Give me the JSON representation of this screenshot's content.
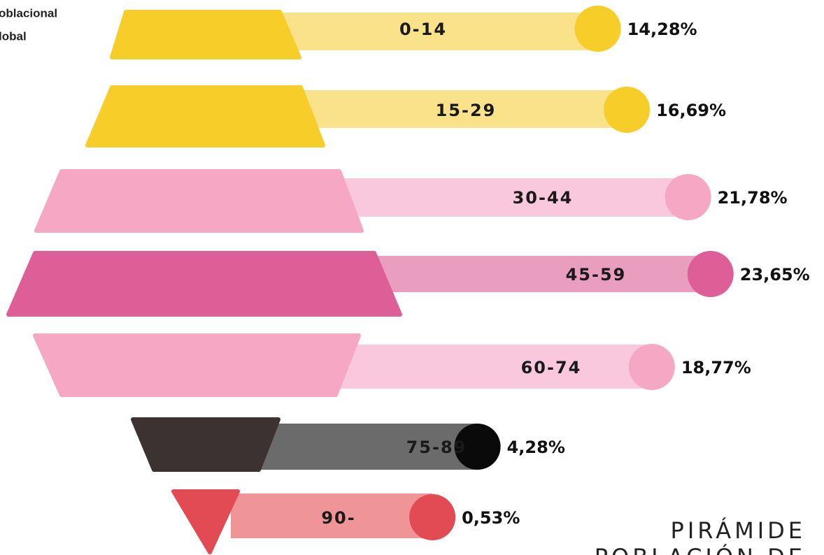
{
  "chart_data": {
    "type": "bar",
    "title_lines": [
      "oblacional",
      "lobal"
    ],
    "footer_lines": [
      "PIRÁMIDE",
      "POBLACIÓN DE"
    ],
    "categories": [
      "0-14",
      "15-29",
      "30-44",
      "45-59",
      "60-74",
      "75-89",
      "90-"
    ],
    "values": [
      14.28,
      16.69,
      21.78,
      23.65,
      18.77,
      4.28,
      0.53
    ],
    "value_labels": [
      "14,28%",
      "16,69%",
      "21,78%",
      "23,65%",
      "18,77%",
      "4,28%",
      "0,53%"
    ],
    "colors": [
      "#f7cd2a",
      "#f7cd2a",
      "#f6a7c4",
      "#de5f98",
      "#f6a7c4",
      "#3d3232",
      "#e24a54"
    ],
    "bar_colors": [
      "#fae28a",
      "#fae28a",
      "#f9c8dc",
      "#e99ebf",
      "#f9c8dc",
      "#6b6b6b",
      "#ef9597"
    ],
    "circle_colors": [
      "#f7cd2a",
      "#f7cd2a",
      "#f6a7c4",
      "#de5f98",
      "#f6a7c4",
      "#0a0a0a",
      "#e24a54"
    ]
  }
}
